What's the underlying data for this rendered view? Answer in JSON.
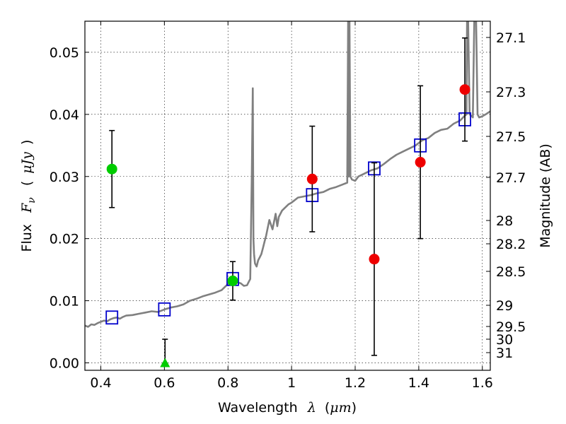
{
  "chart_data": {
    "type": "scatter",
    "title": "",
    "xlabel": {
      "prefix": "Wavelength",
      "symbol": "λ",
      "unit_open": "(",
      "unit": "μm",
      "unit_close": ")"
    },
    "ylabel": {
      "prefix": "Flux",
      "symbol": "F",
      "subscript": "ν",
      "unit_open": "(",
      "unit": "μJy",
      "unit_close": ")"
    },
    "ylabel_right": "Magnitude (AB)",
    "xlim": [
      0.35,
      1.625
    ],
    "ylim": [
      -0.0012,
      0.055
    ],
    "grid": true,
    "x_ticks": [
      {
        "value": 0.4,
        "label": "0.4"
      },
      {
        "value": 0.6,
        "label": "0.6"
      },
      {
        "value": 0.8,
        "label": "0.8"
      },
      {
        "value": 1.0,
        "label": "1"
      },
      {
        "value": 1.2,
        "label": "1.2"
      },
      {
        "value": 1.4,
        "label": "1.4"
      },
      {
        "value": 1.6,
        "label": "1.6"
      }
    ],
    "y_ticks": [
      {
        "value": 0.0,
        "label": "0.00"
      },
      {
        "value": 0.01,
        "label": "0.01"
      },
      {
        "value": 0.02,
        "label": "0.02"
      },
      {
        "value": 0.03,
        "label": "0.03"
      },
      {
        "value": 0.04,
        "label": "0.04"
      },
      {
        "value": 0.05,
        "label": "0.05"
      }
    ],
    "magnitude_ticks": [
      "27.1",
      "27.3",
      "27.5",
      "27.7",
      "28",
      "28.2",
      "28.5",
      "29",
      "29.5",
      "30",
      "31"
    ],
    "series": [
      {
        "kind": "line",
        "color": "#808080",
        "x": [
          0.35,
          0.36,
          0.37,
          0.38,
          0.39,
          0.4,
          0.41,
          0.42,
          0.43,
          0.44,
          0.45,
          0.46,
          0.47,
          0.48,
          0.5,
          0.52,
          0.54,
          0.56,
          0.58,
          0.6,
          0.62,
          0.64,
          0.66,
          0.68,
          0.7,
          0.72,
          0.74,
          0.76,
          0.78,
          0.8,
          0.82,
          0.84,
          0.85,
          0.86,
          0.865,
          0.87,
          0.875,
          0.878,
          0.88,
          0.882,
          0.885,
          0.89,
          0.895,
          0.9,
          0.905,
          0.91,
          0.915,
          0.92,
          0.93,
          0.94,
          0.95,
          0.955,
          0.96,
          0.97,
          0.98,
          0.99,
          1.0,
          1.01,
          1.02,
          1.04,
          1.06,
          1.08,
          1.1,
          1.12,
          1.14,
          1.16,
          1.175,
          1.178,
          1.18,
          1.182,
          1.185,
          1.19,
          1.2,
          1.21,
          1.23,
          1.25,
          1.27,
          1.29,
          1.31,
          1.33,
          1.35,
          1.37,
          1.39,
          1.41,
          1.43,
          1.45,
          1.47,
          1.49,
          1.51,
          1.53,
          1.545,
          1.55,
          1.552,
          1.555,
          1.56,
          1.565,
          1.57,
          1.575,
          1.58,
          1.585,
          1.59,
          1.6,
          1.61,
          1.625
        ],
        "y": [
          0.006,
          0.0058,
          0.0062,
          0.0061,
          0.0064,
          0.0066,
          0.0068,
          0.0067,
          0.007,
          0.0072,
          0.0073,
          0.0071,
          0.0074,
          0.0076,
          0.0077,
          0.0079,
          0.0081,
          0.0083,
          0.0082,
          0.0086,
          0.0089,
          0.0091,
          0.0094,
          0.01,
          0.0103,
          0.0107,
          0.011,
          0.0113,
          0.0117,
          0.0127,
          0.0131,
          0.0128,
          0.0124,
          0.0125,
          0.013,
          0.0135,
          0.03,
          0.0442,
          0.02,
          0.0175,
          0.016,
          0.0155,
          0.0165,
          0.017,
          0.0175,
          0.0185,
          0.0195,
          0.0205,
          0.023,
          0.0215,
          0.024,
          0.022,
          0.0235,
          0.0245,
          0.025,
          0.0255,
          0.0258,
          0.0262,
          0.0266,
          0.0268,
          0.027,
          0.0273,
          0.0275,
          0.028,
          0.0283,
          0.0287,
          0.029,
          0.056,
          0.03,
          0.056,
          0.03,
          0.0295,
          0.0293,
          0.03,
          0.0305,
          0.031,
          0.0313,
          0.032,
          0.0328,
          0.0335,
          0.034,
          0.0345,
          0.035,
          0.0358,
          0.0362,
          0.037,
          0.0375,
          0.0377,
          0.0385,
          0.039,
          0.0398,
          0.04,
          0.056,
          0.056,
          0.04,
          0.0398,
          0.0395,
          0.056,
          0.056,
          0.04,
          0.0395,
          0.0397,
          0.04,
          0.0405
        ]
      },
      {
        "kind": "open-squares",
        "color": "#0000cc",
        "x": [
          0.435,
          0.6,
          0.815,
          1.065,
          1.26,
          1.405,
          1.545
        ],
        "y": [
          0.0073,
          0.0086,
          0.0135,
          0.027,
          0.0313,
          0.035,
          0.0392
        ]
      },
      {
        "kind": "filled-circles",
        "color": "#00cc00",
        "x": [
          0.435,
          0.815
        ],
        "y": [
          0.0312,
          0.0132
        ],
        "yerr": [
          0.0062,
          0.0031
        ]
      },
      {
        "kind": "triangle-upper-limit",
        "color": "#00cc00",
        "x": [
          0.602
        ],
        "y": [
          0.0
        ],
        "yerr": [
          0.0038
        ]
      },
      {
        "kind": "filled-circles",
        "color": "#ee0000",
        "x": [
          1.065,
          1.26,
          1.405,
          1.545
        ],
        "y": [
          0.0296,
          0.0167,
          0.0323,
          0.044
        ],
        "yerr": [
          0.0085,
          0.0155,
          0.0123,
          0.0083
        ]
      }
    ]
  }
}
